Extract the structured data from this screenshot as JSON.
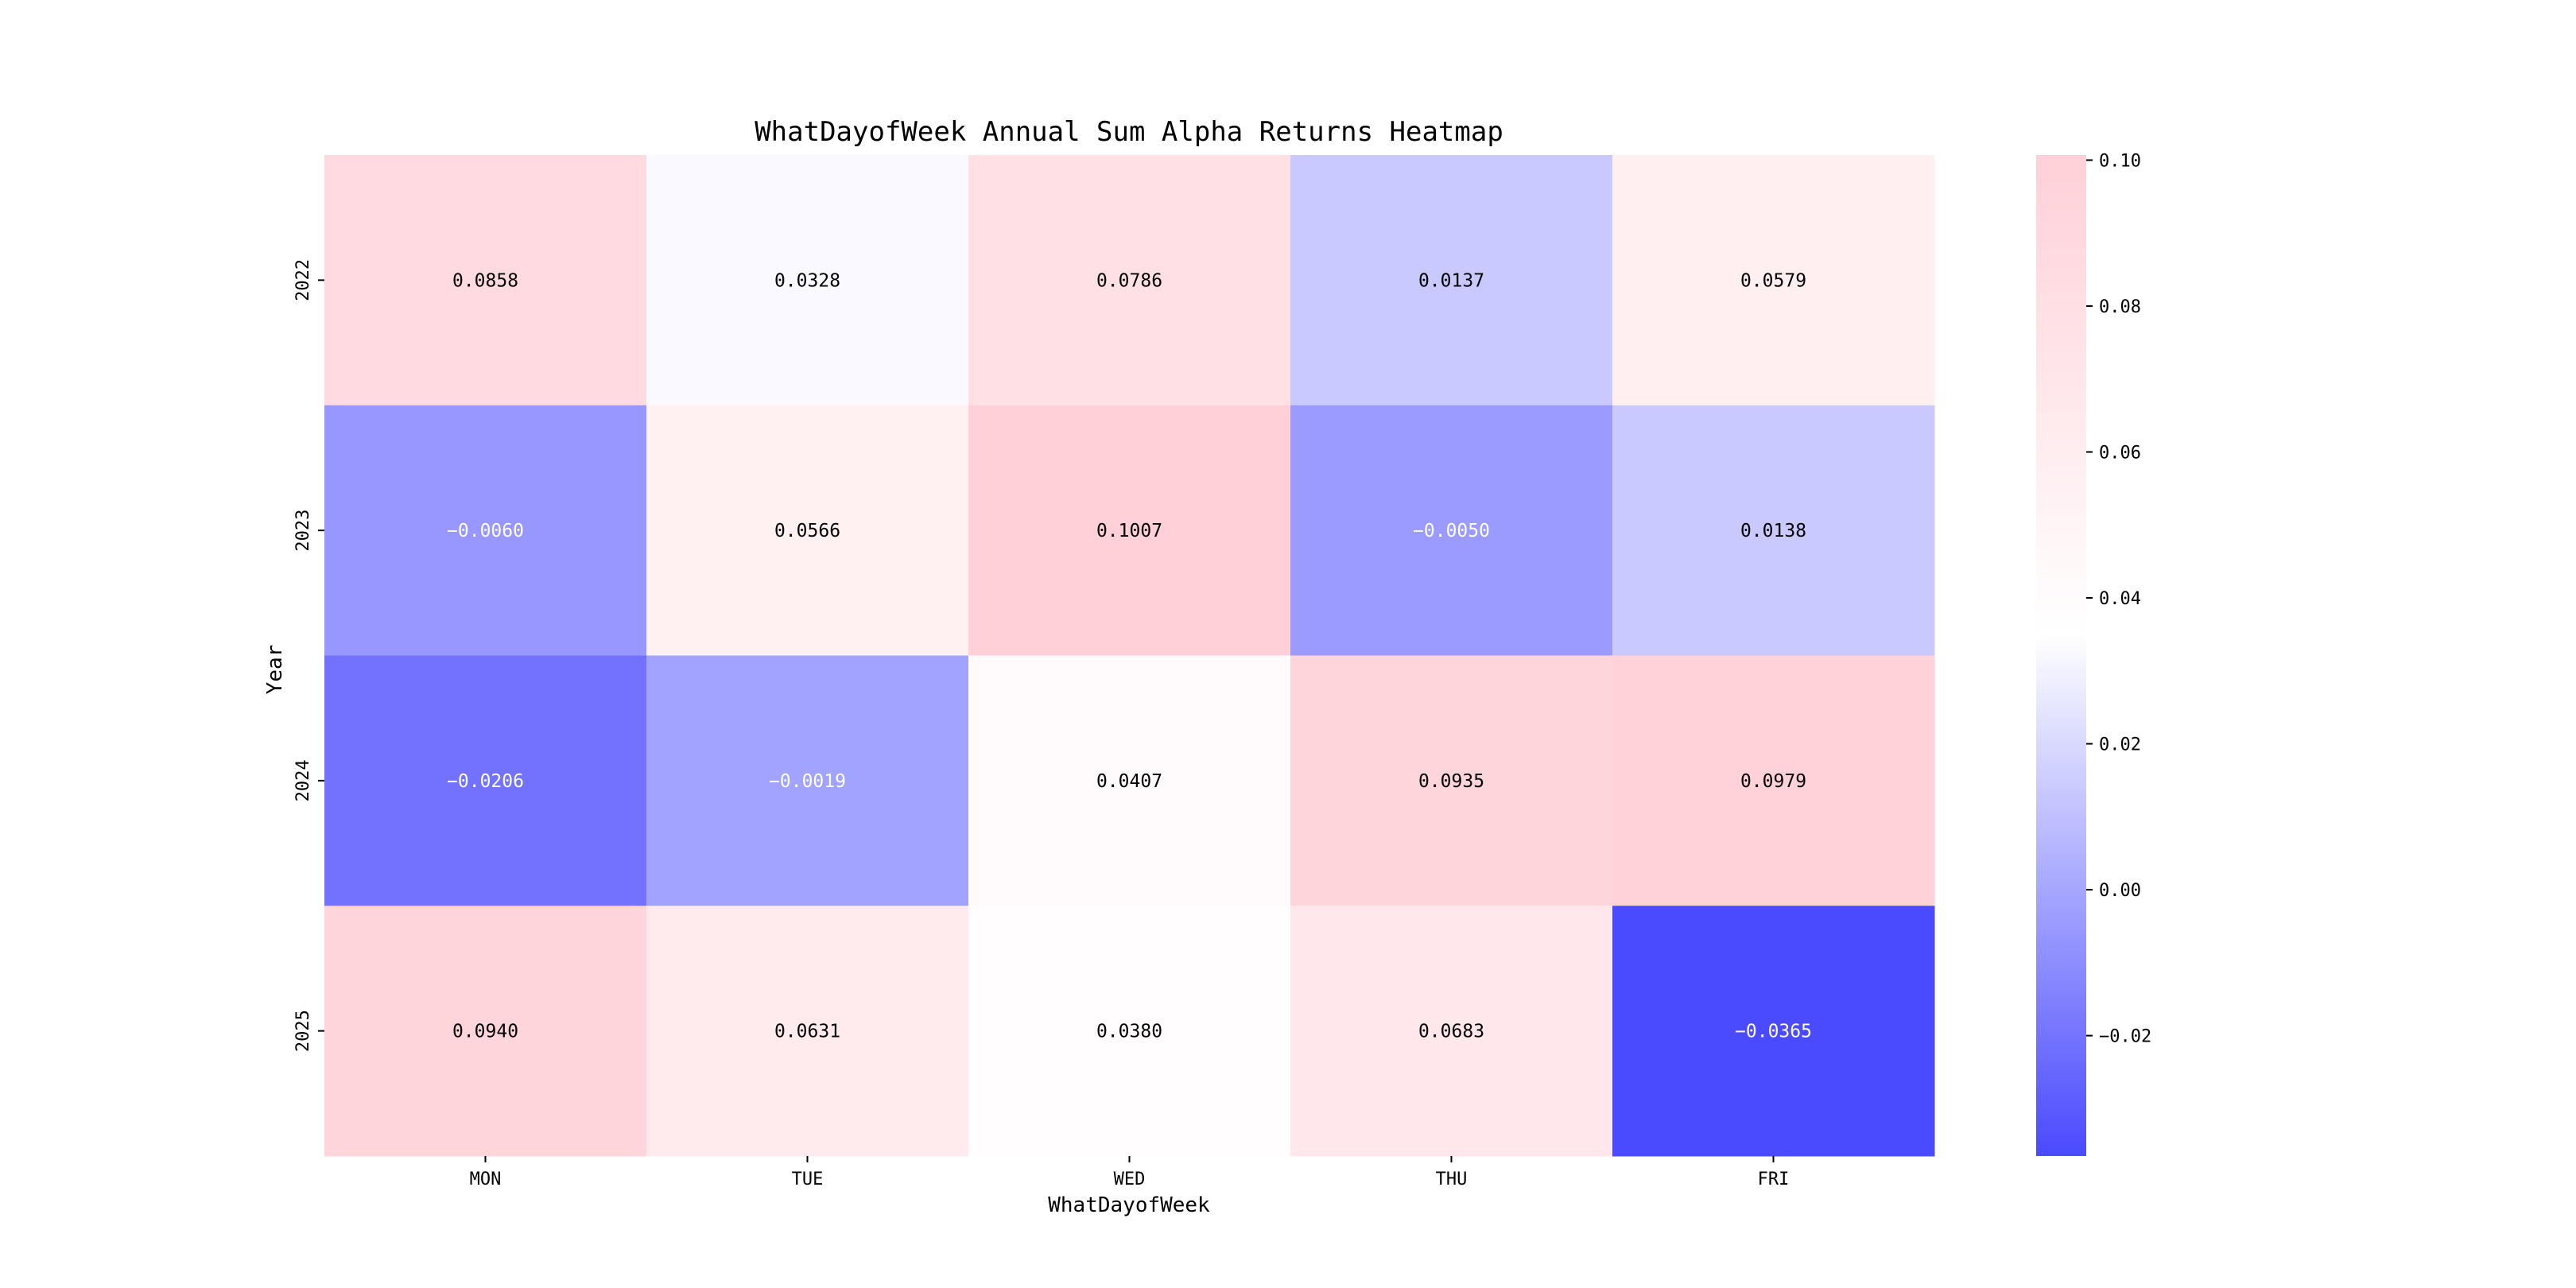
{
  "chart_data": {
    "type": "heatmap",
    "title": "WhatDayofWeek Annual Sum Alpha Returns Heatmap",
    "xlabel": "WhatDayofWeek",
    "ylabel": "Year",
    "x_categories": [
      "MON",
      "TUE",
      "WED",
      "THU",
      "FRI"
    ],
    "y_categories": [
      "2022",
      "2023",
      "2024",
      "2025"
    ],
    "values": [
      [
        0.0858,
        0.0328,
        0.0786,
        0.0137,
        0.0579
      ],
      [
        -0.006,
        0.0566,
        0.1007,
        -0.005,
        0.0138
      ],
      [
        -0.0206,
        -0.0019,
        0.0407,
        0.0935,
        0.0979
      ],
      [
        0.094,
        0.0631,
        0.038,
        0.0683,
        -0.0365
      ]
    ],
    "cell_labels": [
      [
        "0.0858",
        "0.0328",
        "0.0786",
        "0.0137",
        "0.0579"
      ],
      [
        "−0.0060",
        "0.0566",
        "0.1007",
        "−0.0050",
        "0.0138"
      ],
      [
        "−0.0206",
        "−0.0019",
        "0.0407",
        "0.0935",
        "0.0979"
      ],
      [
        "0.0940",
        "0.0631",
        "0.0380",
        "0.0683",
        "−0.0365"
      ]
    ],
    "colorbar": {
      "vmin": -0.0365,
      "vmax": 0.1007,
      "center": 0.035,
      "ticks": [
        0.1,
        0.08,
        0.06,
        0.04,
        0.02,
        0.0,
        -0.02
      ],
      "tick_labels": [
        "0.10",
        "0.08",
        "0.06",
        "0.04",
        "0.02",
        "0.00",
        "−0.02"
      ],
      "color_low": "#4a4aff",
      "color_mid": "#ffffff",
      "color_high": "#ffd0d8"
    }
  }
}
